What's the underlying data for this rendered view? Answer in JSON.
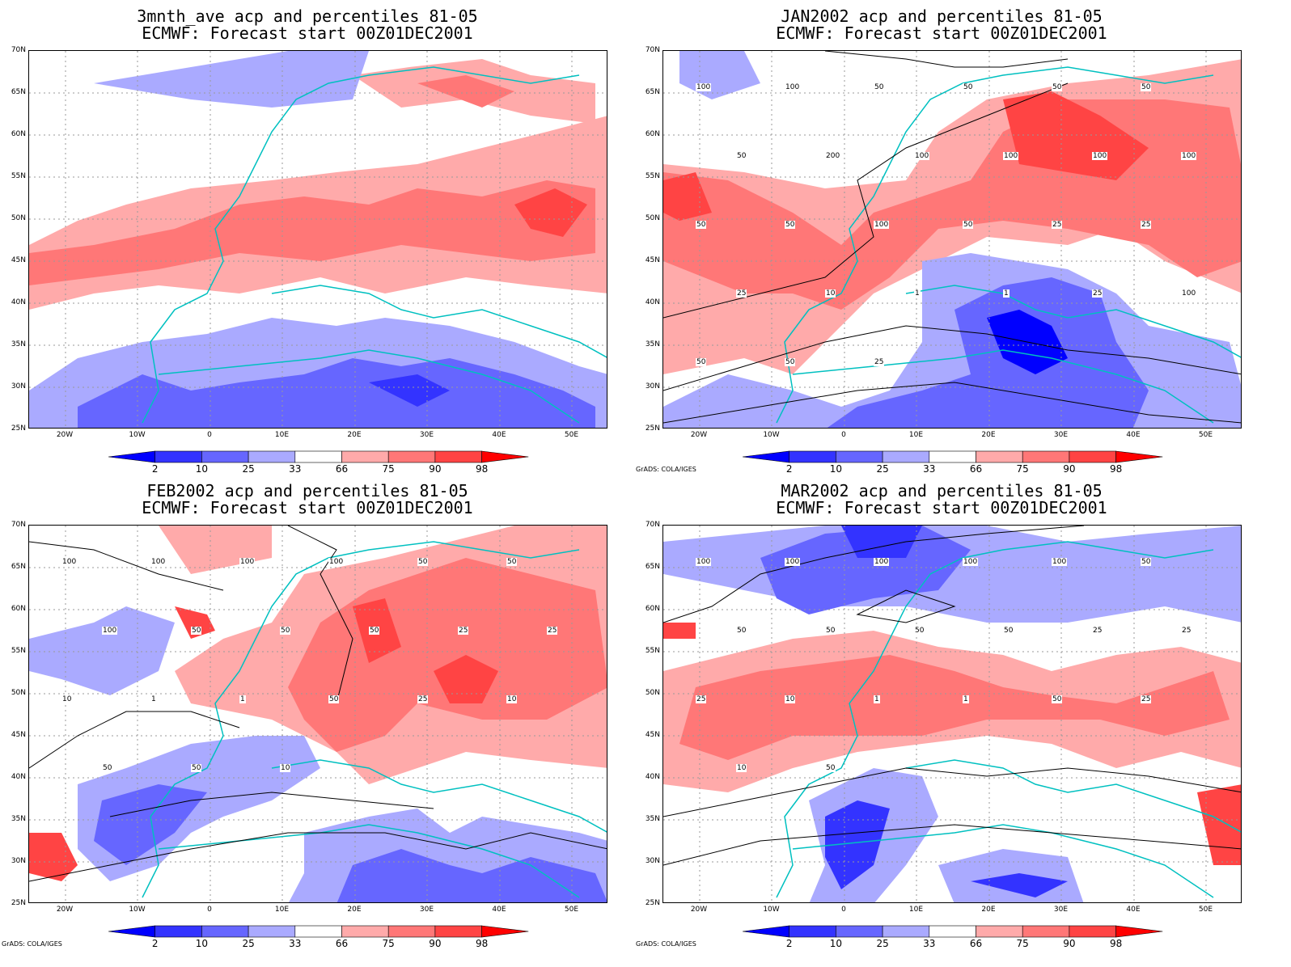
{
  "panels": [
    {
      "line1": "3mnth_ave acp and percentiles 81-05",
      "line2": "ECMWF: Forecast start 00Z01DEC2001",
      "credit": ""
    },
    {
      "line1": "JAN2002 acp and percentiles 81-05",
      "line2": "ECMWF: Forecast start 00Z01DEC2001",
      "credit": "GrADS: COLA/IGES"
    },
    {
      "line1": "FEB2002 acp and percentiles 81-05",
      "line2": "ECMWF: Forecast start 00Z01DEC2001",
      "credit": "GrADS: COLA/IGES"
    },
    {
      "line1": "MAR2002 acp and percentiles 81-05",
      "line2": "ECMWF: Forecast start 00Z01DEC2001",
      "credit": "GrADS: COLA/IGES"
    }
  ],
  "lat_ticks": [
    "70N",
    "65N",
    "60N",
    "55N",
    "50N",
    "45N",
    "40N",
    "35N",
    "30N",
    "25N"
  ],
  "lon_ticks": [
    "20W",
    "10W",
    "0",
    "10E",
    "20E",
    "30E",
    "40E",
    "50E"
  ],
  "colorbar": {
    "labels": [
      "2",
      "10",
      "25",
      "33",
      "66",
      "75",
      "90",
      "98"
    ],
    "colors": [
      "#0000ff",
      "#3333ff",
      "#6666ff",
      "#aaaaff",
      "#ffffff",
      "#ffaaaa",
      "#ff7777",
      "#ff4444",
      "#ff0000"
    ]
  },
  "contour_labels": {
    "p1": [
      "100",
      "100",
      "50",
      "50",
      "50",
      "50",
      "50",
      "200",
      "100",
      "100",
      "100",
      "100",
      "50",
      "50",
      "100",
      "50",
      "25",
      "25",
      "25",
      "10",
      "1",
      "1",
      "25",
      "100",
      "50",
      "50",
      "25"
    ],
    "p2": [
      "100",
      "100",
      "100",
      "100",
      "50",
      "50",
      "100",
      "50",
      "50",
      "50",
      "25",
      "25",
      "10",
      "1",
      "1",
      "50",
      "25",
      "10",
      "50",
      "50",
      "10"
    ],
    "p3": [
      "100",
      "100",
      "100",
      "100",
      "100",
      "50",
      "50",
      "50",
      "50",
      "50",
      "25",
      "25",
      "25",
      "10",
      "1",
      "1",
      "50",
      "25",
      "10",
      "50"
    ]
  }
}
